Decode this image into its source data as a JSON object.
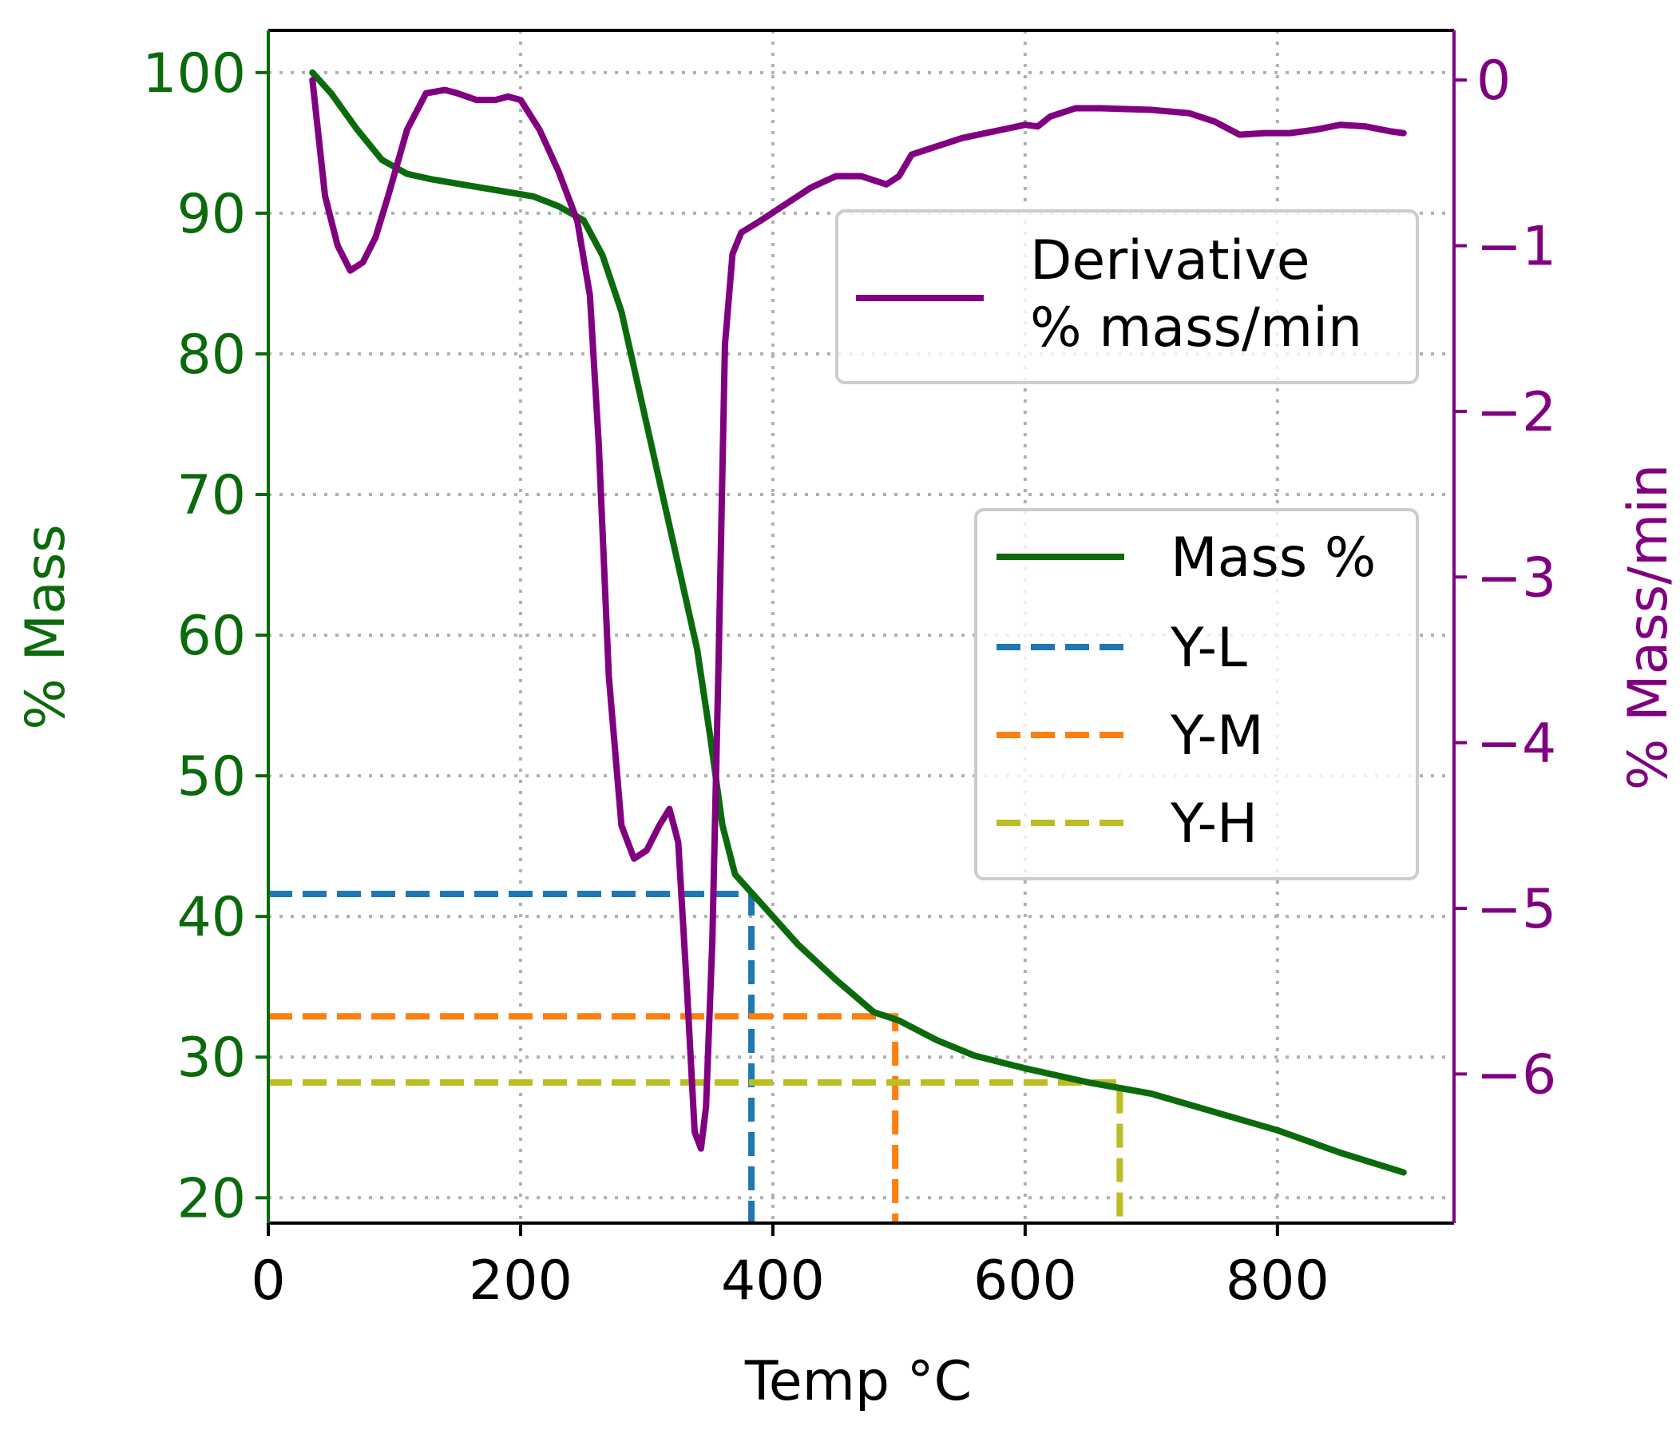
{
  "chart_data": {
    "type": "line",
    "title": "",
    "xlabel": "Temp °C",
    "ylabel_left": "% Mass",
    "ylabel_right": "% Mass/min",
    "xlim": [
      0,
      940
    ],
    "ylim_left": [
      18.2,
      103
    ],
    "ylim_right": [
      -6.9,
      0.3
    ],
    "xticks": [
      0,
      200,
      400,
      600,
      800
    ],
    "xtick_labels": [
      "0",
      "200",
      "400",
      "600",
      "800"
    ],
    "yticks_left": [
      20,
      30,
      40,
      50,
      60,
      70,
      80,
      90,
      100
    ],
    "ytick_labels_left": [
      "20",
      "30",
      "40",
      "50",
      "60",
      "70",
      "80",
      "90",
      "100"
    ],
    "yticks_right": [
      0,
      -1,
      -2,
      -3,
      -4,
      -5,
      -6
    ],
    "ytick_labels_right": [
      "0",
      "−1",
      "−2",
      "−3",
      "−4",
      "−5",
      "−6"
    ],
    "grid": true,
    "colors": {
      "mass": "#0b6a0b",
      "derivative": "#800080",
      "y_l": "#1f77b4",
      "y_m": "#ff7f0e",
      "y_h": "#bcbd22",
      "left_axis": "#0b6a0b",
      "right_axis": "#800080"
    },
    "series": [
      {
        "name": "Mass %",
        "axis": "left",
        "x": [
          35,
          50,
          70,
          90,
          110,
          130,
          150,
          170,
          190,
          210,
          230,
          250,
          265,
          280,
          295,
          310,
          325,
          340,
          350,
          360,
          370,
          385,
          400,
          420,
          450,
          480,
          500,
          530,
          560,
          600,
          650,
          700,
          750,
          800,
          850,
          900
        ],
        "values": [
          100,
          98.5,
          96,
          93.8,
          92.8,
          92.4,
          92.1,
          91.8,
          91.5,
          91.2,
          90.5,
          89.5,
          87,
          83,
          77,
          71,
          65,
          59,
          53,
          46.5,
          43,
          41.5,
          40,
          38,
          35.5,
          33.2,
          32.6,
          31.2,
          30.1,
          29.2,
          28.2,
          27.4,
          26.1,
          24.8,
          23.2,
          21.8
        ]
      },
      {
        "name": "Derivative % mass/min",
        "axis": "right",
        "x": [
          35,
          45,
          55,
          65,
          75,
          85,
          95,
          110,
          125,
          140,
          150,
          165,
          180,
          190,
          200,
          215,
          230,
          245,
          255,
          262,
          270,
          280,
          290,
          300,
          310,
          318,
          325,
          332,
          338,
          343,
          347,
          352,
          357,
          362,
          368,
          375,
          390,
          410,
          430,
          450,
          470,
          490,
          500,
          510,
          550,
          600,
          610,
          620,
          640,
          660,
          700,
          730,
          750,
          770,
          790,
          810,
          830,
          850,
          870,
          890,
          900
        ],
        "values": [
          0,
          -0.7,
          -1.0,
          -1.15,
          -1.1,
          -0.95,
          -0.7,
          -0.3,
          -0.08,
          -0.06,
          -0.08,
          -0.12,
          -0.12,
          -0.1,
          -0.12,
          -0.3,
          -0.55,
          -0.85,
          -1.3,
          -2.2,
          -3.6,
          -4.5,
          -4.7,
          -4.65,
          -4.5,
          -4.4,
          -4.6,
          -5.5,
          -6.35,
          -6.45,
          -6.2,
          -5.2,
          -3.5,
          -1.6,
          -1.05,
          -0.92,
          -0.85,
          -0.75,
          -0.65,
          -0.58,
          -0.58,
          -0.63,
          -0.58,
          -0.45,
          -0.35,
          -0.27,
          -0.28,
          -0.22,
          -0.17,
          -0.17,
          -0.18,
          -0.2,
          -0.25,
          -0.33,
          -0.32,
          -0.32,
          -0.3,
          -0.27,
          -0.28,
          -0.31,
          -0.32
        ]
      }
    ],
    "reference_lines": [
      {
        "name": "Y-L",
        "axis": "left",
        "y": 41.6,
        "x_end": 383
      },
      {
        "name": "Y-M",
        "axis": "left",
        "y": 32.9,
        "x_end": 497
      },
      {
        "name": "Y-H",
        "axis": "left",
        "y": 28.2,
        "x_end": 675
      }
    ],
    "legends": [
      {
        "position": "upper-right",
        "entries": [
          {
            "label_lines": [
              "Derivative",
              "% mass/min"
            ],
            "series": "Derivative % mass/min"
          }
        ]
      },
      {
        "position": "center-right",
        "entries": [
          {
            "label": "Mass %"
          },
          {
            "label": "Y-L"
          },
          {
            "label": "Y-M"
          },
          {
            "label": "Y-H"
          }
        ]
      }
    ]
  }
}
